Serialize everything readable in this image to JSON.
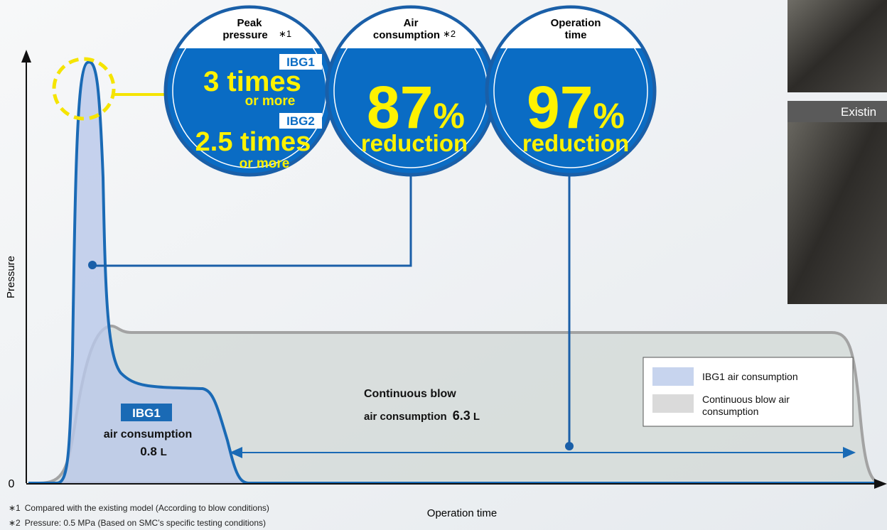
{
  "axes": {
    "y_label": "Pressure",
    "origin": "0",
    "x_label": "Operation time"
  },
  "circles": [
    {
      "heading": [
        "Peak",
        "pressure"
      ],
      "note": "∗1",
      "items": [
        {
          "model": "IBG1",
          "value": "3 times",
          "qualifier": "or more"
        },
        {
          "model": "IBG2",
          "value": "2.5 times",
          "qualifier": "or more"
        }
      ]
    },
    {
      "heading": [
        "Air",
        "consumption"
      ],
      "note": "∗2",
      "value": "87",
      "unit": "%",
      "label": "reduction"
    },
    {
      "heading": [
        "Operation",
        "time"
      ],
      "value": "97",
      "unit": "%",
      "label": "reduction"
    }
  ],
  "callouts": {
    "ibg1": {
      "badge": "IBG1",
      "label": "air consumption",
      "value": "0.8",
      "unit": "L"
    },
    "continuous": {
      "title": "Continuous blow",
      "label": "air consumption",
      "value": "6.3",
      "unit": "L"
    }
  },
  "legend": [
    {
      "lines": [
        "IBG1 air consumption"
      ]
    },
    {
      "lines": [
        "Continuous blow air",
        "consumption"
      ]
    }
  ],
  "footnotes": [
    {
      "mark": "∗1",
      "text": "Compared with the existing model (According to blow conditions)"
    },
    {
      "mark": "∗2",
      "text": "Pressure: 0.5 MPa (Based on SMC’s specific testing conditions)"
    }
  ],
  "photo_label": "Existin"
}
